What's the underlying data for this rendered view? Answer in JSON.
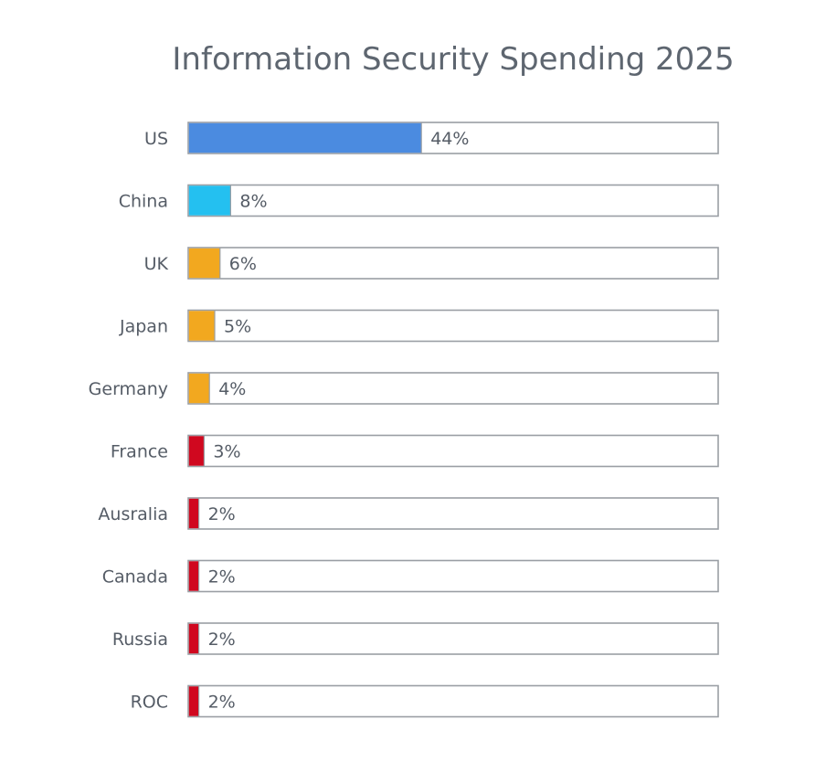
{
  "chart_data": {
    "type": "bar",
    "orientation": "horizontal",
    "title": "Information Security Spending 2025",
    "xlabel": "",
    "ylabel": "",
    "xlim": [
      0,
      100
    ],
    "grid": false,
    "categories": [
      "US",
      "China",
      "UK",
      "Japan",
      "Germany",
      "France",
      "Ausralia",
      "Canada",
      "Russia",
      "ROC"
    ],
    "values": [
      44,
      8,
      6,
      5,
      4,
      3,
      2,
      2,
      2,
      2
    ],
    "value_labels": [
      "44%",
      "8%",
      "6%",
      "5%",
      "4%",
      "3%",
      "2%",
      "2%",
      "2%",
      "2%"
    ],
    "bar_colors": [
      "#4b8be0",
      "#24c0f0",
      "#f2a81f",
      "#f2a81f",
      "#f2a81f",
      "#d0081f",
      "#d0081f",
      "#d0081f",
      "#d0081f",
      "#d0081f"
    ]
  }
}
